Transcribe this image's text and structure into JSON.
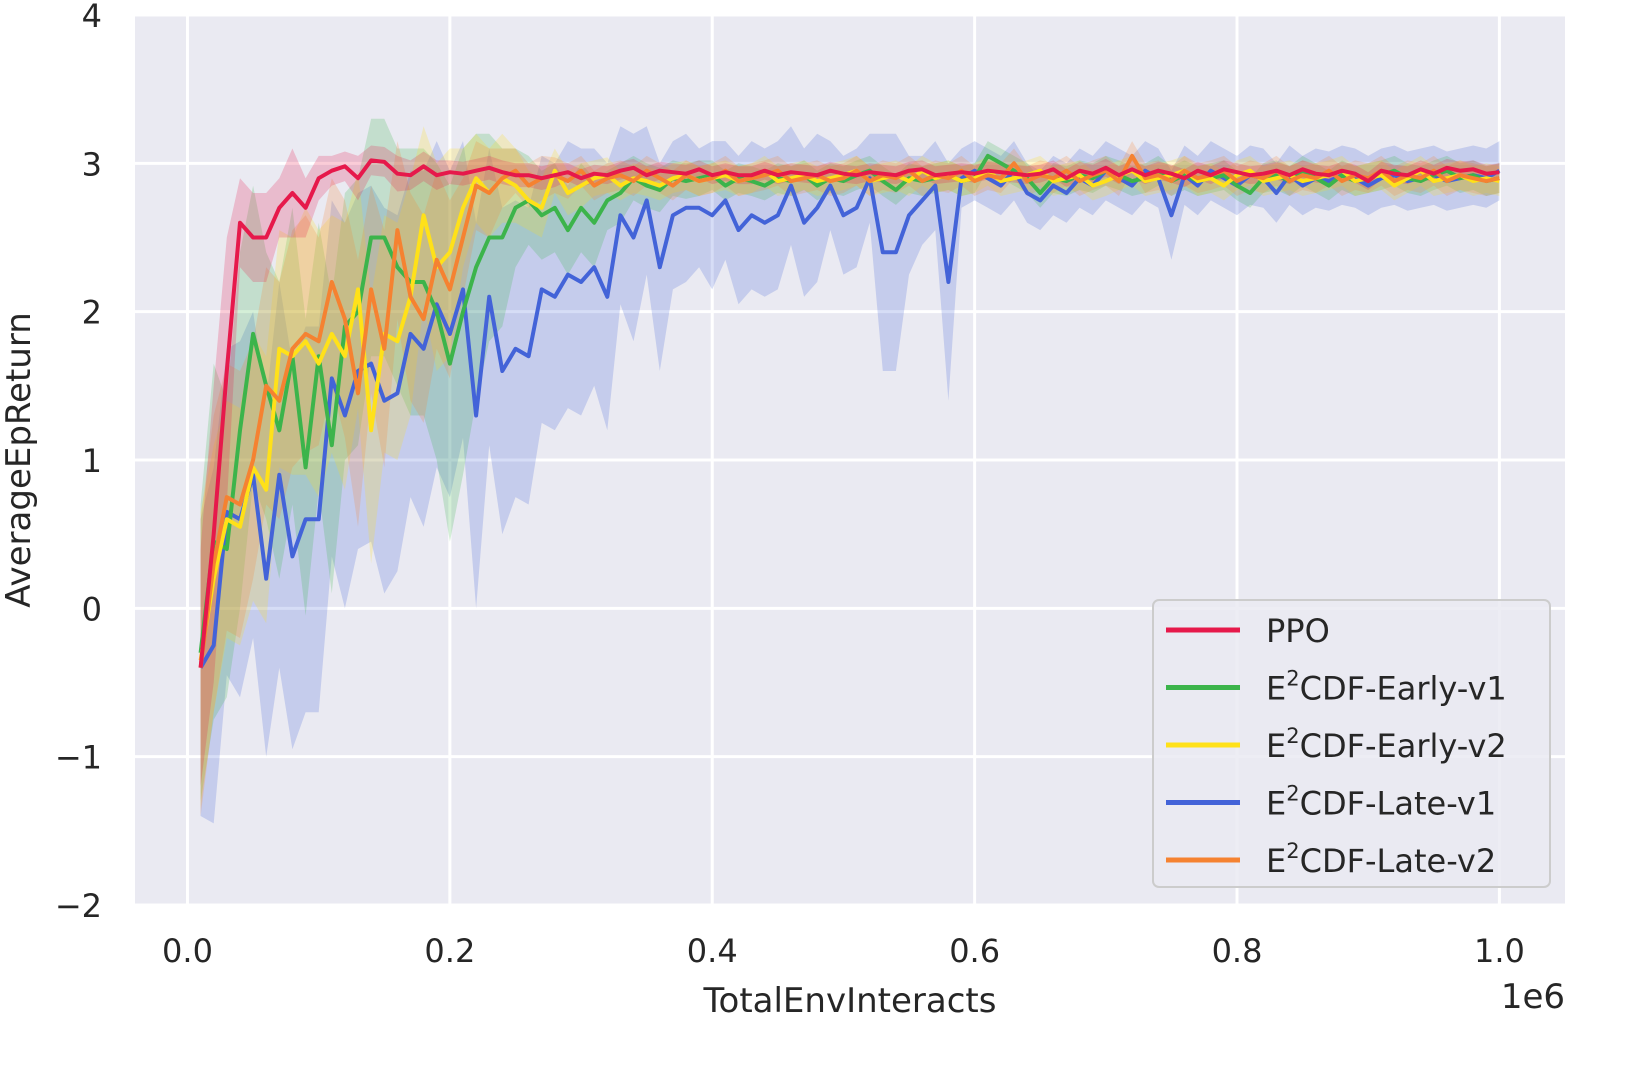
{
  "chart_data": {
    "type": "line",
    "title": "",
    "xlabel": "TotalEnvInteracts",
    "ylabel": "AverageEpReturn",
    "x_offset_label": "1e6",
    "xlim": [
      -0.04,
      1.05
    ],
    "ylim": [
      -2,
      4
    ],
    "x_ticks": [
      0.0,
      0.2,
      0.4,
      0.6,
      0.8,
      1.0
    ],
    "x_tick_labels": [
      "0.0",
      "0.2",
      "0.4",
      "0.6",
      "0.8",
      "1.0"
    ],
    "y_ticks": [
      -2,
      -1,
      0,
      1,
      2,
      3,
      4
    ],
    "y_tick_labels": [
      "−2",
      "−1",
      "0",
      "1",
      "2",
      "3",
      "4"
    ],
    "grid": true,
    "background": "#eaeaf2",
    "legend_position": "lower-right",
    "legend_entries": [
      {
        "base": "PPO",
        "sup": "",
        "rest": ""
      },
      {
        "base": "E",
        "sup": "2",
        "rest": "CDF-Early-v1"
      },
      {
        "base": "E",
        "sup": "2",
        "rest": "CDF-Early-v2"
      },
      {
        "base": "E",
        "sup": "2",
        "rest": "CDF-Late-v1"
      },
      {
        "base": "E",
        "sup": "2",
        "rest": "CDF-Late-v2"
      }
    ],
    "x_start": 0.01,
    "x_step": 0.01,
    "series": [
      {
        "name": "PPO",
        "color": "#e6194b",
        "values": [
          -0.4,
          0.5,
          1.6,
          2.6,
          2.5,
          2.5,
          2.7,
          2.8,
          2.7,
          2.9,
          2.95,
          2.98,
          2.9,
          3.02,
          3.01,
          2.93,
          2.92,
          2.98,
          2.92,
          2.94,
          2.93,
          2.95,
          2.97,
          2.94,
          2.92,
          2.92,
          2.9,
          2.92,
          2.94,
          2.9,
          2.93,
          2.92,
          2.95,
          2.97,
          2.92,
          2.95,
          2.94,
          2.93,
          2.96,
          2.92,
          2.94,
          2.92,
          2.92,
          2.95,
          2.92,
          2.94,
          2.93,
          2.92,
          2.95,
          2.93,
          2.92,
          2.94,
          2.93,
          2.92,
          2.95,
          2.96,
          2.92,
          2.93,
          2.94,
          2.93,
          2.95,
          2.94,
          2.93,
          2.92,
          2.93,
          2.96,
          2.9,
          2.95,
          2.93,
          2.97,
          2.92,
          2.96,
          2.92,
          2.95,
          2.93,
          2.9,
          2.95,
          2.92,
          2.96,
          2.94,
          2.92,
          2.93,
          2.95,
          2.92,
          2.96,
          2.93,
          2.92,
          2.95,
          2.93,
          2.88,
          2.95,
          2.93,
          2.92,
          2.96,
          2.93,
          2.97,
          2.95,
          2.96,
          2.93,
          2.94
        ],
        "spread": [
          0.8,
          1.0,
          0.9,
          0.3,
          0.3,
          0.3,
          0.2,
          0.3,
          0.2,
          0.15,
          0.1,
          0.1,
          0.15,
          0.1,
          0.1,
          0.12,
          0.1,
          0.1,
          0.1,
          0.08,
          0.08,
          0.08,
          0.08,
          0.08,
          0.08,
          0.08,
          0.08,
          0.08,
          0.06,
          0.06,
          0.06,
          0.06,
          0.06,
          0.06,
          0.06,
          0.06,
          0.06,
          0.06,
          0.06,
          0.06,
          0.06,
          0.06,
          0.06,
          0.06,
          0.06,
          0.06,
          0.06,
          0.06,
          0.06,
          0.06,
          0.06,
          0.06,
          0.06,
          0.06,
          0.06,
          0.06,
          0.06,
          0.06,
          0.06,
          0.06,
          0.06,
          0.06,
          0.06,
          0.06,
          0.06,
          0.06,
          0.06,
          0.06,
          0.06,
          0.06,
          0.06,
          0.06,
          0.06,
          0.06,
          0.06,
          0.06,
          0.06,
          0.06,
          0.06,
          0.06,
          0.06,
          0.06,
          0.06,
          0.06,
          0.06,
          0.06,
          0.06,
          0.06,
          0.06,
          0.06,
          0.06,
          0.06,
          0.06,
          0.06,
          0.06,
          0.06,
          0.06,
          0.06,
          0.06,
          0.06
        ]
      },
      {
        "name": "E2CDF-Early-v1",
        "color": "#3cb44b",
        "values": [
          -0.3,
          0.45,
          0.4,
          1.2,
          1.85,
          1.5,
          1.2,
          1.7,
          0.95,
          1.7,
          1.1,
          1.9,
          2.0,
          2.5,
          2.5,
          2.3,
          2.2,
          2.2,
          2.0,
          1.65,
          2.0,
          2.3,
          2.5,
          2.5,
          2.7,
          2.75,
          2.65,
          2.7,
          2.55,
          2.7,
          2.6,
          2.75,
          2.8,
          2.9,
          2.85,
          2.82,
          2.9,
          2.88,
          2.9,
          2.92,
          2.85,
          2.9,
          2.88,
          2.85,
          2.9,
          2.88,
          2.92,
          2.85,
          2.9,
          2.88,
          2.92,
          2.95,
          2.88,
          2.82,
          2.9,
          2.88,
          2.9,
          2.92,
          2.88,
          2.9,
          3.05,
          3.0,
          2.95,
          2.9,
          2.8,
          2.9,
          2.88,
          2.92,
          2.9,
          2.95,
          2.92,
          2.88,
          2.9,
          2.95,
          2.88,
          2.92,
          2.88,
          2.9,
          2.92,
          2.85,
          2.8,
          2.9,
          2.92,
          2.88,
          2.95,
          2.9,
          2.85,
          2.92,
          2.88,
          2.9,
          2.92,
          2.95,
          2.9,
          2.88,
          2.92,
          2.95,
          2.9,
          2.92,
          2.88,
          2.9
        ],
        "spread": [
          1.0,
          1.2,
          1.0,
          1.2,
          1.0,
          0.9,
          1.0,
          1.0,
          1.0,
          0.9,
          1.0,
          0.9,
          0.9,
          0.8,
          0.8,
          0.8,
          0.9,
          0.9,
          1.0,
          1.2,
          1.1,
          0.9,
          0.7,
          0.6,
          0.4,
          0.3,
          0.3,
          0.3,
          0.3,
          0.3,
          0.3,
          0.2,
          0.2,
          0.15,
          0.15,
          0.15,
          0.12,
          0.12,
          0.12,
          0.1,
          0.1,
          0.1,
          0.1,
          0.1,
          0.1,
          0.1,
          0.1,
          0.1,
          0.1,
          0.1,
          0.1,
          0.1,
          0.1,
          0.1,
          0.1,
          0.1,
          0.1,
          0.1,
          0.1,
          0.1,
          0.1,
          0.1,
          0.1,
          0.1,
          0.1,
          0.1,
          0.1,
          0.1,
          0.1,
          0.1,
          0.1,
          0.1,
          0.1,
          0.1,
          0.1,
          0.1,
          0.1,
          0.1,
          0.1,
          0.1,
          0.1,
          0.1,
          0.1,
          0.1,
          0.1,
          0.1,
          0.1,
          0.1,
          0.1,
          0.1,
          0.1,
          0.1,
          0.1,
          0.1,
          0.1,
          0.1,
          0.1,
          0.1,
          0.1,
          0.1
        ]
      },
      {
        "name": "E2CDF-Early-v2",
        "color": "#ffe119",
        "values": [
          -0.35,
          0.2,
          0.6,
          0.55,
          0.95,
          0.8,
          1.75,
          1.7,
          1.8,
          1.65,
          1.85,
          1.7,
          2.15,
          1.2,
          1.85,
          1.8,
          2.1,
          2.65,
          2.3,
          2.4,
          2.7,
          2.9,
          2.8,
          2.9,
          2.85,
          2.75,
          2.7,
          2.95,
          2.8,
          2.85,
          2.9,
          2.92,
          2.85,
          2.9,
          2.88,
          2.85,
          2.9,
          2.92,
          2.88,
          2.9,
          2.92,
          2.88,
          2.9,
          2.95,
          2.88,
          2.9,
          2.92,
          2.88,
          2.9,
          2.92,
          2.95,
          2.88,
          2.9,
          2.92,
          2.88,
          2.95,
          2.9,
          2.92,
          2.88,
          2.9,
          2.95,
          2.88,
          2.9,
          2.92,
          2.95,
          2.88,
          2.9,
          2.92,
          2.85,
          2.88,
          2.92,
          2.95,
          2.88,
          2.9,
          2.92,
          2.95,
          2.88,
          2.9,
          2.85,
          2.92,
          2.95,
          2.88,
          2.9,
          2.92,
          2.88,
          2.9,
          2.92,
          2.95,
          2.88,
          2.9,
          2.92,
          2.85,
          2.9,
          2.95,
          2.88,
          2.9,
          2.92,
          2.88,
          2.9,
          2.88
        ],
        "spread": [
          1.0,
          0.9,
          0.8,
          0.8,
          0.9,
          0.9,
          0.8,
          0.8,
          0.9,
          0.9,
          0.8,
          0.9,
          0.8,
          0.9,
          0.8,
          0.8,
          0.8,
          0.6,
          0.7,
          0.7,
          0.4,
          0.3,
          0.3,
          0.3,
          0.25,
          0.2,
          0.2,
          0.15,
          0.15,
          0.15,
          0.12,
          0.12,
          0.1,
          0.1,
          0.1,
          0.1,
          0.1,
          0.1,
          0.1,
          0.1,
          0.1,
          0.1,
          0.1,
          0.1,
          0.1,
          0.1,
          0.1,
          0.1,
          0.1,
          0.1,
          0.1,
          0.1,
          0.1,
          0.1,
          0.1,
          0.1,
          0.1,
          0.1,
          0.1,
          0.1,
          0.1,
          0.1,
          0.1,
          0.1,
          0.1,
          0.1,
          0.1,
          0.1,
          0.1,
          0.1,
          0.1,
          0.1,
          0.1,
          0.1,
          0.1,
          0.1,
          0.1,
          0.1,
          0.1,
          0.1,
          0.1,
          0.1,
          0.1,
          0.1,
          0.1,
          0.1,
          0.1,
          0.1,
          0.1,
          0.1,
          0.1,
          0.1,
          0.1,
          0.1,
          0.1,
          0.1,
          0.1,
          0.1,
          0.1,
          0.1
        ]
      },
      {
        "name": "E2CDF-Late-v1",
        "color": "#4363d8",
        "values": [
          -0.4,
          -0.25,
          0.65,
          0.6,
          0.9,
          0.2,
          0.9,
          0.35,
          0.6,
          0.6,
          1.55,
          1.3,
          1.6,
          1.65,
          1.4,
          1.45,
          1.85,
          1.75,
          2.05,
          1.85,
          2.15,
          1.3,
          2.1,
          1.6,
          1.75,
          1.7,
          2.15,
          2.1,
          2.25,
          2.2,
          2.3,
          2.1,
          2.65,
          2.5,
          2.75,
          2.3,
          2.65,
          2.7,
          2.7,
          2.65,
          2.75,
          2.55,
          2.65,
          2.6,
          2.65,
          2.85,
          2.6,
          2.7,
          2.85,
          2.65,
          2.7,
          2.9,
          2.4,
          2.4,
          2.65,
          2.75,
          2.85,
          2.2,
          2.9,
          2.95,
          2.9,
          2.85,
          2.95,
          2.8,
          2.75,
          2.85,
          2.8,
          2.9,
          2.85,
          2.95,
          2.9,
          2.85,
          2.95,
          2.9,
          2.65,
          2.92,
          2.85,
          2.95,
          2.9,
          2.85,
          2.92,
          2.9,
          2.8,
          2.92,
          2.85,
          2.9,
          2.88,
          2.92,
          2.9,
          2.85,
          2.9,
          2.92,
          2.88,
          2.9,
          2.92,
          2.88,
          2.9,
          2.92,
          2.9,
          2.95
        ],
        "spread": [
          1.0,
          1.2,
          1.1,
          1.2,
          1.1,
          1.2,
          1.3,
          1.3,
          1.3,
          1.3,
          1.2,
          1.3,
          1.2,
          1.2,
          1.3,
          1.2,
          1.1,
          1.2,
          1.1,
          1.1,
          1.0,
          1.3,
          1.0,
          1.1,
          1.0,
          1.0,
          0.9,
          0.9,
          0.9,
          0.9,
          0.8,
          0.9,
          0.6,
          0.7,
          0.5,
          0.7,
          0.5,
          0.5,
          0.4,
          0.5,
          0.4,
          0.5,
          0.5,
          0.5,
          0.5,
          0.4,
          0.5,
          0.5,
          0.3,
          0.4,
          0.4,
          0.3,
          0.8,
          0.8,
          0.4,
          0.3,
          0.3,
          0.8,
          0.2,
          0.2,
          0.2,
          0.2,
          0.2,
          0.2,
          0.2,
          0.2,
          0.2,
          0.2,
          0.2,
          0.2,
          0.2,
          0.2,
          0.2,
          0.2,
          0.3,
          0.2,
          0.2,
          0.2,
          0.2,
          0.2,
          0.2,
          0.2,
          0.2,
          0.2,
          0.2,
          0.2,
          0.2,
          0.2,
          0.2,
          0.2,
          0.2,
          0.2,
          0.2,
          0.2,
          0.2,
          0.2,
          0.2,
          0.2,
          0.2,
          0.2
        ]
      },
      {
        "name": "E2CDF-Late-v2",
        "color": "#f58231",
        "values": [
          -0.4,
          0.3,
          0.75,
          0.7,
          1.0,
          1.5,
          1.4,
          1.75,
          1.85,
          1.8,
          2.2,
          1.95,
          1.45,
          2.15,
          1.75,
          2.55,
          2.1,
          1.95,
          2.35,
          2.15,
          2.5,
          2.85,
          2.8,
          2.9,
          2.95,
          2.85,
          2.9,
          2.92,
          2.88,
          2.95,
          2.85,
          2.9,
          2.92,
          2.88,
          2.95,
          2.9,
          2.85,
          2.92,
          2.88,
          2.9,
          2.95,
          2.88,
          2.9,
          2.92,
          2.95,
          2.88,
          2.9,
          2.92,
          2.88,
          2.9,
          2.95,
          2.88,
          2.92,
          2.9,
          2.95,
          2.88,
          2.92,
          2.9,
          2.95,
          2.88,
          2.92,
          2.9,
          3.0,
          2.88,
          2.92,
          2.9,
          2.95,
          2.88,
          2.92,
          2.95,
          2.88,
          3.05,
          2.9,
          2.92,
          2.88,
          2.95,
          2.9,
          2.92,
          2.95,
          2.88,
          2.92,
          2.9,
          2.95,
          2.88,
          2.92,
          2.9,
          2.95,
          2.88,
          2.92,
          2.9,
          2.95,
          2.88,
          2.92,
          2.9,
          2.95,
          2.88,
          2.92,
          2.9,
          2.88,
          2.9
        ],
        "spread": [
          1.0,
          1.0,
          0.9,
          0.9,
          0.8,
          0.8,
          0.8,
          0.8,
          0.8,
          0.7,
          0.7,
          0.8,
          0.9,
          0.7,
          0.8,
          0.6,
          0.7,
          0.7,
          0.6,
          0.6,
          0.4,
          0.3,
          0.3,
          0.2,
          0.15,
          0.15,
          0.15,
          0.12,
          0.12,
          0.1,
          0.1,
          0.1,
          0.1,
          0.1,
          0.1,
          0.1,
          0.1,
          0.1,
          0.1,
          0.1,
          0.1,
          0.1,
          0.1,
          0.1,
          0.1,
          0.1,
          0.1,
          0.1,
          0.1,
          0.1,
          0.1,
          0.1,
          0.1,
          0.1,
          0.1,
          0.1,
          0.1,
          0.1,
          0.1,
          0.1,
          0.1,
          0.1,
          0.1,
          0.1,
          0.1,
          0.1,
          0.1,
          0.1,
          0.1,
          0.1,
          0.1,
          0.1,
          0.1,
          0.1,
          0.1,
          0.1,
          0.1,
          0.1,
          0.1,
          0.1,
          0.1,
          0.1,
          0.1,
          0.1,
          0.1,
          0.1,
          0.1,
          0.1,
          0.1,
          0.1,
          0.1,
          0.1,
          0.1,
          0.1,
          0.1,
          0.1,
          0.1,
          0.1,
          0.1,
          0.1
        ]
      }
    ]
  }
}
